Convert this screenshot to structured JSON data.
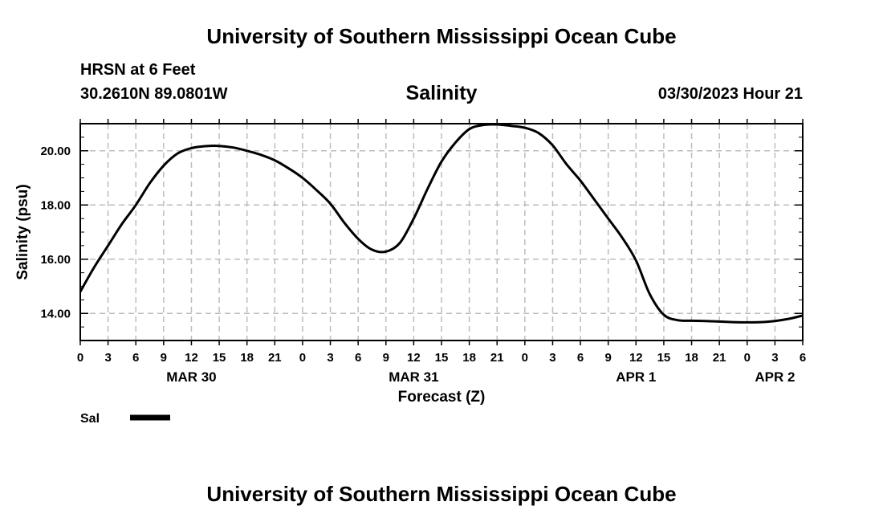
{
  "header": {
    "title": "University of Southern Mississippi Ocean Cube",
    "station": "HRSN at 6 Feet",
    "coords": "30.2610N  89.0801W",
    "variable": "Salinity",
    "datetime": "03/30/2023 Hour 21",
    "footer_title": "University of Southern Mississippi Ocean Cube"
  },
  "chart_data": {
    "type": "line",
    "title": "Salinity",
    "xlabel": "Forecast (Z)",
    "ylabel": "Salinity (psu)",
    "ylim": [
      13.0,
      21.0
    ],
    "y_ticks": [
      14.0,
      16.0,
      18.0,
      20.0
    ],
    "y_tick_labels": [
      "14.00",
      "16.00",
      "18.00",
      "20.00"
    ],
    "x_unit": "forecast hour from Mar 30 00Z",
    "xlim": [
      0,
      78
    ],
    "x_ticks": [
      0,
      3,
      6,
      9,
      12,
      15,
      18,
      21,
      24,
      27,
      30,
      33,
      36,
      39,
      42,
      45,
      48,
      51,
      54,
      57,
      60,
      63,
      66,
      69,
      72,
      75,
      78
    ],
    "x_tick_labels": [
      "0",
      "3",
      "6",
      "9",
      "12",
      "15",
      "18",
      "21",
      "0",
      "3",
      "6",
      "9",
      "12",
      "15",
      "18",
      "21",
      "0",
      "3",
      "6",
      "9",
      "12",
      "15",
      "18",
      "21",
      "0",
      "3",
      "6"
    ],
    "date_labels": [
      {
        "x": 12,
        "label": "MAR 30"
      },
      {
        "x": 36,
        "label": "MAR 31"
      },
      {
        "x": 60,
        "label": "APR 1"
      },
      {
        "x": 75,
        "label": "APR 2"
      }
    ],
    "grid": true,
    "legend": [
      {
        "name": "Sal",
        "color": "#000000"
      }
    ],
    "series": [
      {
        "name": "Sal",
        "x": [
          0,
          1.5,
          3,
          4.5,
          6,
          7.5,
          9,
          10.5,
          12,
          13.5,
          15,
          16.5,
          18,
          19.5,
          21,
          22.5,
          24,
          25.5,
          27,
          28.5,
          30,
          31.5,
          33,
          34.5,
          36,
          37.5,
          39,
          40.5,
          42,
          43.5,
          45,
          46.5,
          48,
          49.5,
          51,
          52.5,
          54,
          55.5,
          57,
          58.5,
          60,
          61.5,
          63,
          64.5,
          66,
          67.5,
          69,
          70.5,
          72,
          73.5,
          75,
          76.5,
          78
        ],
        "values": [
          14.8,
          15.7,
          16.5,
          17.3,
          18.0,
          18.8,
          19.45,
          19.9,
          20.1,
          20.17,
          20.18,
          20.12,
          20.0,
          19.85,
          19.65,
          19.35,
          19.0,
          18.55,
          18.05,
          17.35,
          16.75,
          16.35,
          16.28,
          16.6,
          17.5,
          18.6,
          19.6,
          20.3,
          20.8,
          20.95,
          20.97,
          20.92,
          20.85,
          20.65,
          20.2,
          19.5,
          18.9,
          18.2,
          17.5,
          16.8,
          15.95,
          14.7,
          13.95,
          13.75,
          13.73,
          13.72,
          13.7,
          13.68,
          13.67,
          13.68,
          13.72,
          13.8,
          13.92
        ]
      }
    ]
  }
}
